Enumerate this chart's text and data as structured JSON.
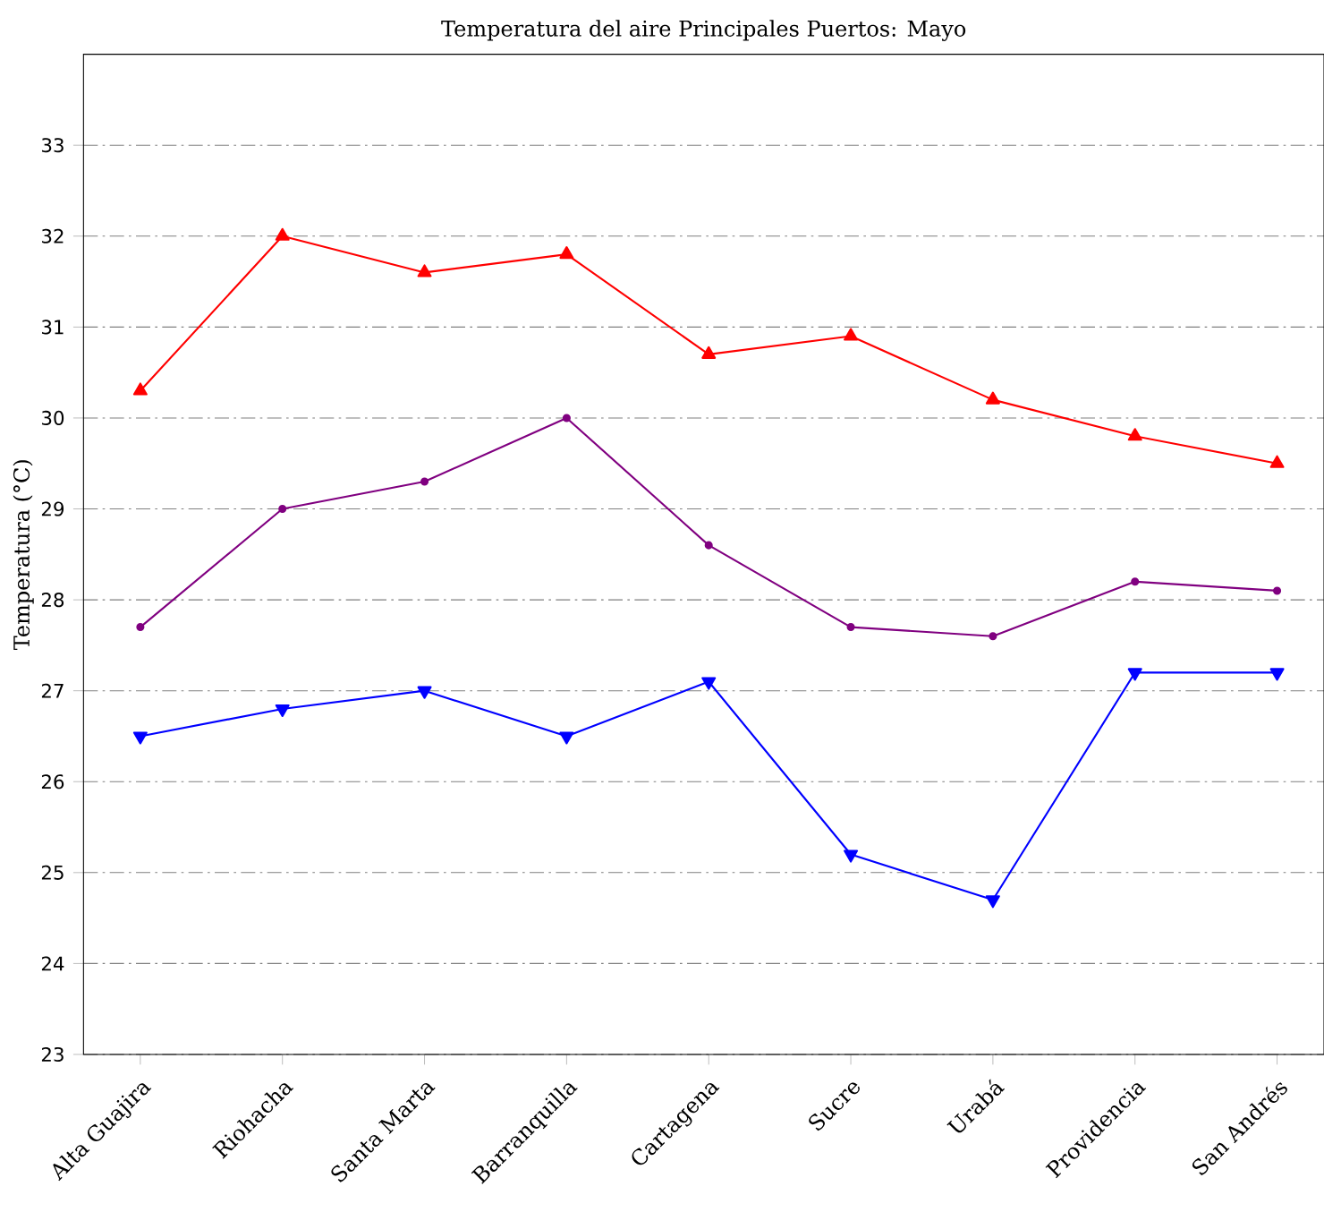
{
  "chart_data": {
    "type": "line",
    "title": "Temperatura del aire Principales Puertos: Mayo",
    "ylabel": "Temperatura (°C)",
    "categories": [
      "Alta Guajira",
      "Riohacha",
      "Santa Marta",
      "Barranquilla",
      "Cartagena",
      "Sucre",
      "Urabá",
      "Providencia",
      "San Andrés"
    ],
    "series": [
      {
        "color": "#ff0000",
        "marker": "triangle",
        "values": [
          30.3,
          32.0,
          31.6,
          31.8,
          30.7,
          30.9,
          30.2,
          29.8,
          29.5
        ]
      },
      {
        "color": "#800080",
        "marker": "circle",
        "values": [
          27.7,
          29.0,
          29.3,
          30.0,
          28.6,
          27.7,
          27.6,
          28.2,
          28.1
        ]
      },
      {
        "color": "#0000ff",
        "marker": "triangle-down",
        "values": [
          26.5,
          26.8,
          27.0,
          26.5,
          27.1,
          25.2,
          24.7,
          27.2,
          27.2
        ]
      }
    ],
    "ylim": [
      23,
      34
    ],
    "yticks": [
      23,
      24,
      25,
      26,
      27,
      28,
      29,
      30,
      31,
      32,
      33
    ],
    "grid": "y",
    "line_style": "solid"
  }
}
